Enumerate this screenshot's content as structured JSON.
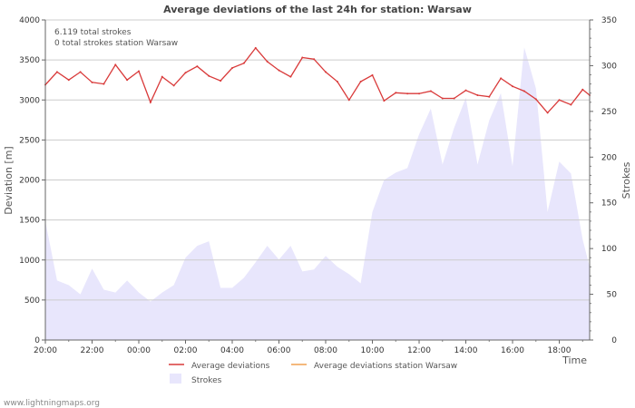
{
  "chart_data": {
    "type": "line",
    "title": "Average deviations of the last 24h for station: Warsaw",
    "xlabel": "Time",
    "ylabel": "Deviation  [m]",
    "y2label": "Strokes",
    "ylim": [
      0,
      4000
    ],
    "y2lim": [
      0,
      350
    ],
    "xlim_hours": [
      0,
      23.3
    ],
    "x_ticks": [
      "20:00",
      "22:00",
      "00:00",
      "02:00",
      "04:00",
      "06:00",
      "08:00",
      "10:00",
      "12:00",
      "14:00",
      "16:00",
      "18:00"
    ],
    "y_ticks": [
      0,
      500,
      1000,
      1500,
      2000,
      2500,
      3000,
      3500,
      4000
    ],
    "y2_ticks": [
      0,
      50,
      100,
      150,
      200,
      250,
      300,
      350
    ],
    "annotations": [
      "6.119 total strokes",
      "0 total strokes station Warsaw"
    ],
    "legend": {
      "deviations": "Average deviations",
      "station": "Average deviations station Warsaw",
      "strokes": "Strokes"
    },
    "colors": {
      "deviations": "#d93a3a",
      "station": "#f0a050",
      "strokes": "#e8e6fc",
      "grid": "#cccccc"
    },
    "series": [
      {
        "name": "Average deviations",
        "axis": "left",
        "hours": [
          0,
          0.5,
          1,
          1.5,
          2,
          2.5,
          3,
          3.5,
          4,
          4.5,
          5,
          5.5,
          6,
          6.5,
          7,
          7.5,
          8,
          8.5,
          9,
          9.5,
          10,
          10.5,
          11,
          11.5,
          12,
          12.5,
          13,
          13.5,
          14,
          14.5,
          15,
          15.5,
          16,
          16.5,
          17,
          17.5,
          18,
          18.5,
          19,
          19.5,
          20,
          20.5,
          21,
          21.5,
          22,
          22.5,
          23,
          23.3
        ],
        "values": [
          3190,
          3350,
          3250,
          3350,
          3220,
          3200,
          3440,
          3250,
          3360,
          2970,
          3290,
          3180,
          3340,
          3420,
          3300,
          3240,
          3400,
          3460,
          3650,
          3480,
          3370,
          3290,
          3530,
          3510,
          3350,
          3230,
          3000,
          3230,
          3310,
          2990,
          3090,
          3080,
          3080,
          3110,
          3020,
          3020,
          3120,
          3060,
          3040,
          3270,
          3170,
          3110,
          3010,
          2840,
          3000,
          2940,
          3130,
          3060
        ]
      },
      {
        "name": "Strokes",
        "axis": "right",
        "hours": [
          0,
          0.5,
          1,
          1.5,
          2,
          2.5,
          3,
          3.5,
          4,
          4.5,
          5,
          5.5,
          6,
          6.5,
          7,
          7.5,
          8,
          8.5,
          9,
          9.5,
          10,
          10.5,
          11,
          11.5,
          12,
          12.5,
          13,
          13.5,
          14,
          14.5,
          15,
          15.5,
          16,
          16.5,
          17,
          17.5,
          18,
          18.5,
          19,
          19.5,
          20,
          20.5,
          21,
          21.5,
          22,
          22.5,
          23,
          23.3
        ],
        "values": [
          130,
          65,
          60,
          50,
          78,
          55,
          52,
          65,
          52,
          42,
          52,
          60,
          90,
          103,
          108,
          57,
          57,
          68,
          85,
          103,
          88,
          103,
          75,
          77,
          92,
          80,
          72,
          62,
          140,
          175,
          183,
          188,
          225,
          253,
          192,
          232,
          265,
          192,
          240,
          270,
          190,
          320,
          275,
          140,
          195,
          182,
          110,
          80
        ]
      }
    ],
    "station_series_values": []
  },
  "watermark": "www.lightningmaps.org"
}
